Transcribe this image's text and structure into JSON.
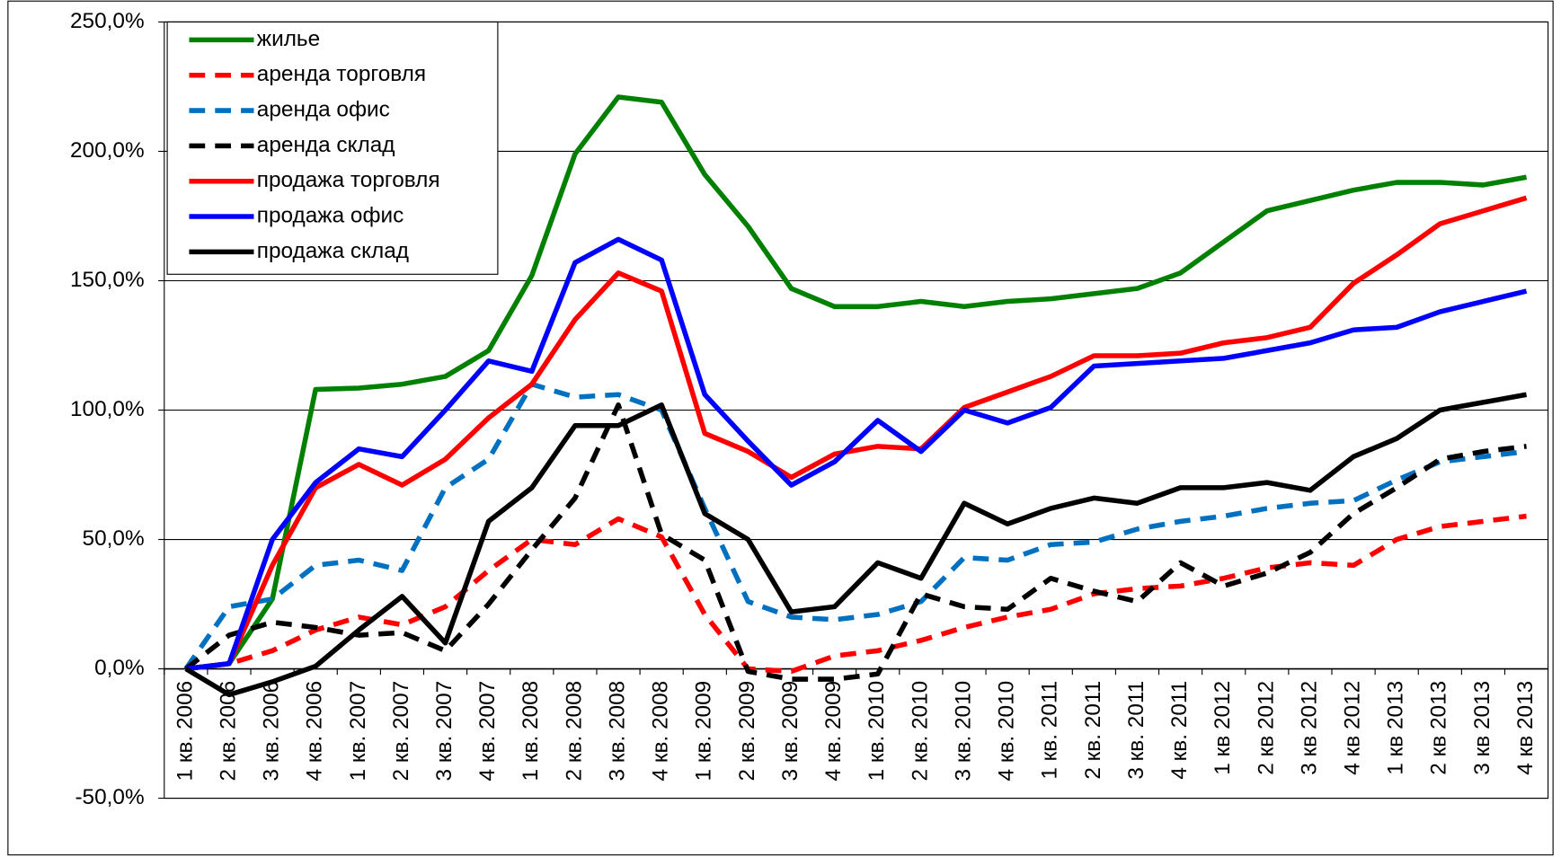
{
  "chart_data": {
    "type": "line",
    "categories": [
      "1 кв. 2006",
      "2 кв. 2006",
      "3 кв. 2006",
      "4 кв. 2006",
      "1 кв. 2007",
      "2 кв. 2007",
      "3 кв. 2007",
      "4 кв. 2007",
      "1 кв. 2008",
      "2 кв. 2008",
      "3 кв. 2008",
      "4 кв. 2008",
      "1 кв. 2009",
      "2 кв. 2009",
      "3 кв. 2009",
      "4 кв. 2009",
      "1 кв. 2010",
      "2 кв. 2010",
      "3 кв. 2010",
      "4 кв. 2010",
      "1 кв. 2011",
      "2 кв. 2011",
      "3 кв. 2011",
      "4 кв. 2011",
      "1 кв 2012",
      "2 кв 2012",
      "3 кв 2012",
      "4 кв 2012",
      "1 кв 2013",
      "2 кв 2013",
      "3 кв 2013",
      "4 кв 2013"
    ],
    "series": [
      {
        "name": "жилье",
        "color": "#008000",
        "dashed": false,
        "values": [
          0,
          2,
          27,
          108,
          108.5,
          110,
          113,
          123,
          152,
          199,
          221,
          219,
          191,
          171,
          147,
          140,
          140,
          142,
          140,
          142,
          143,
          145,
          147,
          153,
          165,
          177,
          181,
          185,
          188,
          188,
          187,
          190
        ]
      },
      {
        "name": "аренда торговля",
        "color": "#ff0000",
        "dashed": true,
        "values": [
          0,
          2,
          7,
          15,
          20,
          17,
          24,
          38,
          50,
          48,
          58,
          51,
          21,
          0,
          -1,
          5,
          7,
          11,
          16,
          20,
          23,
          29,
          31,
          32,
          35,
          39,
          41,
          40,
          50,
          55,
          57,
          59
        ]
      },
      {
        "name": "аренда офис",
        "color": "#0070c0",
        "dashed": true,
        "values": [
          0,
          24,
          27,
          40,
          42,
          38,
          70,
          81,
          110,
          105,
          106,
          100,
          62,
          26,
          20,
          19,
          21,
          26,
          43,
          42,
          48,
          49,
          54,
          57,
          59,
          62,
          64,
          65,
          73,
          80,
          82,
          84
        ]
      },
      {
        "name": "аренда склад",
        "color": "#000000",
        "dashed": true,
        "values": [
          0,
          13,
          18,
          16,
          13,
          14,
          7,
          25,
          46,
          66,
          102,
          52,
          42,
          -1,
          -4,
          -4,
          -2,
          29,
          24,
          23,
          35,
          30,
          26,
          41,
          32,
          37,
          45,
          60,
          70,
          81,
          84,
          86
        ]
      },
      {
        "name": "продажа торговля",
        "color": "#ff0000",
        "dashed": false,
        "values": [
          0,
          2,
          40,
          70,
          79,
          71,
          81,
          97,
          110,
          135,
          153,
          146,
          91,
          84,
          74,
          83,
          86,
          85,
          101,
          107,
          113,
          121,
          121,
          122,
          126,
          128,
          132,
          149,
          160,
          172,
          177,
          182
        ]
      },
      {
        "name": "продажа офис",
        "color": "#0000ff",
        "dashed": false,
        "values": [
          0,
          2,
          50,
          72,
          85,
          82,
          100,
          119,
          115,
          157,
          166,
          158,
          106,
          88,
          71,
          80,
          96,
          84,
          100,
          95,
          101,
          117,
          118,
          119,
          120,
          123,
          126,
          131,
          132,
          138,
          142,
          146
        ]
      },
      {
        "name": "продажа склад",
        "color": "#000000",
        "dashed": false,
        "values": [
          0,
          -10,
          -5,
          1,
          15,
          28,
          10,
          57,
          70,
          94,
          94,
          102,
          60,
          50,
          22,
          24,
          41,
          35,
          64,
          56,
          62,
          66,
          64,
          70,
          70,
          72,
          69,
          82,
          89,
          100,
          103,
          106
        ]
      }
    ],
    "ylim": [
      -50,
      250
    ],
    "yticks": [
      {
        "value": -50,
        "label": "-50,0%"
      },
      {
        "value": 0,
        "label": "0,0%"
      },
      {
        "value": 50,
        "label": "50,0%"
      },
      {
        "value": 100,
        "label": "100,0%"
      },
      {
        "value": 150,
        "label": "150,0%"
      },
      {
        "value": 200,
        "label": "200,0%"
      },
      {
        "value": 250,
        "label": "250,0%"
      }
    ],
    "grid": true,
    "legend": "top-left"
  }
}
